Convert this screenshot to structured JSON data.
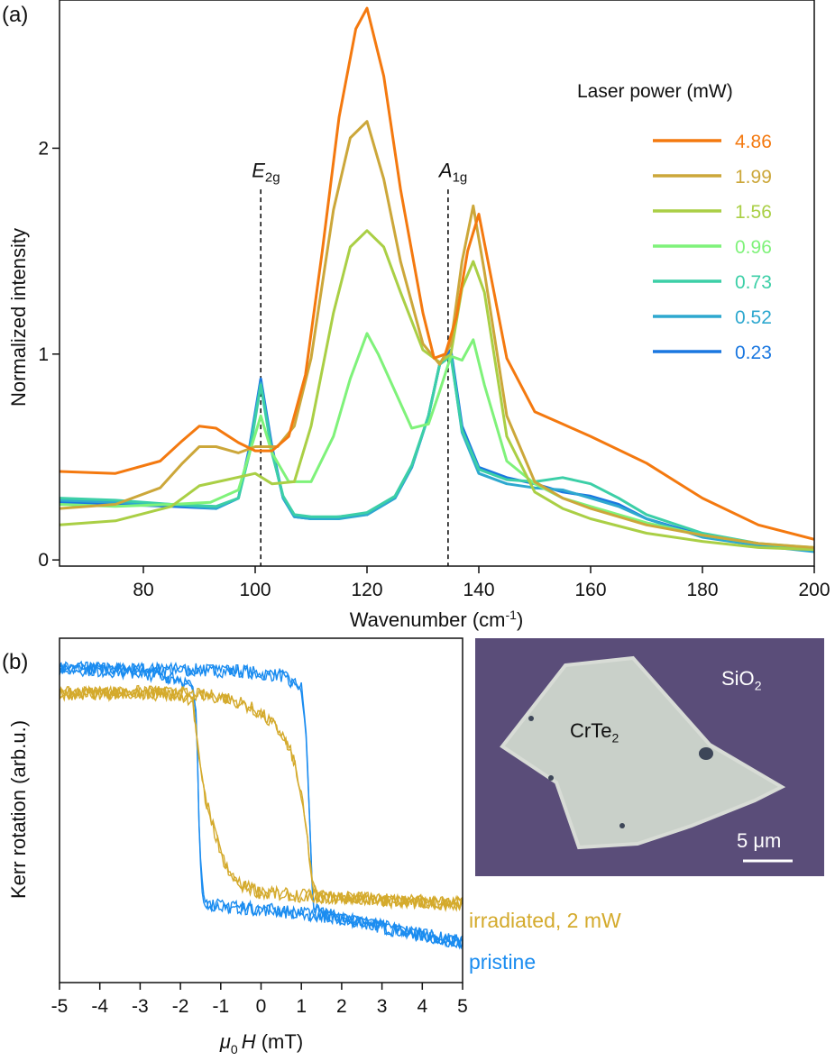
{
  "panel_a": {
    "label": "(a)",
    "legend_title": "Laser power (mW)",
    "peaks": [
      {
        "name": "E",
        "sub": "2g",
        "x": 101
      },
      {
        "name": "A",
        "sub": "1g",
        "x": 134.5
      }
    ]
  },
  "panel_b": {
    "label": "(b)",
    "micro": {
      "material": "CrTe",
      "material_sub": "2",
      "substrate": "SiO",
      "substrate_sub": "2",
      "scale_bar": "5 μm"
    }
  },
  "chart_data": [
    {
      "type": "line",
      "title": "",
      "xlabel": "Wavenumber (cm",
      "xlabel_sup": "-1",
      "xlabel_end": ")",
      "ylabel": "Normalized intensity",
      "xlim": [
        65,
        200
      ],
      "ylim": [
        -0.03,
        2.72
      ],
      "xticks": [
        80,
        100,
        120,
        140,
        160,
        180,
        200
      ],
      "yticks": [
        0,
        1,
        2
      ],
      "legend_position": "top-right",
      "series": [
        {
          "name": "0.23",
          "color": "#1a77e0",
          "x": [
            65,
            75,
            85,
            93,
            97,
            99,
            101,
            103,
            105,
            107,
            110,
            115,
            120,
            125,
            128,
            131,
            133,
            135,
            137,
            140,
            145,
            150,
            155,
            160,
            165,
            170,
            180,
            190,
            200
          ],
          "y": [
            0.28,
            0.27,
            0.26,
            0.25,
            0.3,
            0.55,
            0.88,
            0.55,
            0.3,
            0.21,
            0.2,
            0.21,
            0.22,
            0.3,
            0.45,
            0.7,
            0.95,
            1.02,
            0.65,
            0.45,
            0.4,
            0.37,
            0.33,
            0.31,
            0.27,
            0.2,
            0.12,
            0.07,
            0.05
          ]
        },
        {
          "name": "0.52",
          "color": "#2ea8cf",
          "x": [
            65,
            75,
            85,
            93,
            97,
            99,
            101,
            103,
            105,
            107,
            110,
            115,
            120,
            125,
            128,
            131,
            133,
            135,
            137,
            140,
            145,
            150,
            155,
            160,
            165,
            170,
            180,
            190,
            200
          ],
          "y": [
            0.29,
            0.28,
            0.27,
            0.25,
            0.3,
            0.54,
            0.86,
            0.53,
            0.3,
            0.21,
            0.2,
            0.2,
            0.22,
            0.3,
            0.45,
            0.7,
            0.95,
            1.0,
            0.62,
            0.42,
            0.37,
            0.35,
            0.34,
            0.3,
            0.26,
            0.2,
            0.11,
            0.07,
            0.04
          ]
        },
        {
          "name": "0.73",
          "color": "#3ccfa7",
          "x": [
            65,
            75,
            85,
            93,
            97,
            99,
            101,
            103,
            105,
            107,
            110,
            115,
            120,
            125,
            128,
            131,
            133,
            135,
            137,
            140,
            145,
            150,
            155,
            160,
            165,
            170,
            180,
            190,
            200
          ],
          "y": [
            0.3,
            0.29,
            0.27,
            0.26,
            0.3,
            0.52,
            0.85,
            0.52,
            0.31,
            0.22,
            0.21,
            0.21,
            0.23,
            0.31,
            0.46,
            0.7,
            0.95,
            0.99,
            0.63,
            0.44,
            0.39,
            0.38,
            0.4,
            0.37,
            0.3,
            0.22,
            0.13,
            0.08,
            0.05
          ]
        },
        {
          "name": "0.96",
          "color": "#7ff27a",
          "x": [
            65,
            75,
            85,
            92,
            97,
            99,
            101,
            103,
            106,
            110,
            114,
            117,
            120,
            122,
            125,
            128,
            131,
            133,
            135,
            137,
            139,
            141,
            145,
            150,
            155,
            160,
            170,
            180,
            190,
            200
          ],
          "y": [
            0.27,
            0.26,
            0.27,
            0.28,
            0.34,
            0.52,
            0.7,
            0.52,
            0.38,
            0.38,
            0.6,
            0.88,
            1.1,
            1.0,
            0.82,
            0.64,
            0.66,
            0.82,
            0.99,
            0.97,
            1.07,
            0.85,
            0.48,
            0.37,
            0.3,
            0.26,
            0.18,
            0.12,
            0.08,
            0.06
          ]
        },
        {
          "name": "1.56",
          "color": "#aacf45",
          "x": [
            65,
            75,
            85,
            90,
            95,
            100,
            103,
            107,
            110,
            114,
            117,
            120,
            123,
            126,
            130,
            133,
            135,
            137,
            139,
            141,
            145,
            150,
            155,
            160,
            170,
            180,
            190,
            200
          ],
          "y": [
            0.17,
            0.19,
            0.26,
            0.36,
            0.39,
            0.42,
            0.37,
            0.38,
            0.65,
            1.2,
            1.52,
            1.6,
            1.52,
            1.3,
            1.02,
            0.96,
            1.0,
            1.32,
            1.45,
            1.3,
            0.6,
            0.33,
            0.25,
            0.2,
            0.13,
            0.09,
            0.06,
            0.05
          ]
        },
        {
          "name": "1.99",
          "color": "#cca73a",
          "x": [
            65,
            75,
            83,
            87,
            90,
            93,
            97,
            100,
            104,
            107,
            110,
            114,
            117,
            120,
            123,
            126,
            130,
            133,
            135,
            137,
            139,
            141,
            145,
            150,
            155,
            160,
            170,
            180,
            190,
            200
          ],
          "y": [
            0.25,
            0.27,
            0.35,
            0.47,
            0.55,
            0.55,
            0.52,
            0.55,
            0.55,
            0.65,
            0.98,
            1.7,
            2.05,
            2.13,
            1.85,
            1.45,
            1.05,
            0.95,
            1.05,
            1.45,
            1.72,
            1.4,
            0.7,
            0.38,
            0.3,
            0.25,
            0.17,
            0.12,
            0.08,
            0.06
          ]
        },
        {
          "name": "4.86",
          "color": "#f4790f",
          "x": [
            65,
            75,
            83,
            87,
            90,
            93,
            97,
            100,
            103,
            106,
            109,
            112,
            115,
            118,
            120,
            123,
            126,
            130,
            132,
            134,
            136,
            138,
            140,
            142,
            145,
            150,
            155,
            160,
            170,
            180,
            190,
            200
          ],
          "y": [
            0.43,
            0.42,
            0.48,
            0.58,
            0.65,
            0.64,
            0.57,
            0.53,
            0.53,
            0.6,
            0.9,
            1.5,
            2.15,
            2.58,
            2.68,
            2.35,
            1.8,
            1.2,
            0.98,
            1.0,
            1.18,
            1.5,
            1.68,
            1.4,
            0.98,
            0.72,
            0.66,
            0.6,
            0.47,
            0.3,
            0.17,
            0.1
          ]
        }
      ]
    },
    {
      "type": "line",
      "title": "",
      "xlabel": "μ",
      "xlabel_sub": "0",
      "xlabel_var": "H",
      "xlabel_unit": " (mT)",
      "ylabel": "Kerr rotation (arb.u.)",
      "xlim": [
        -5,
        5
      ],
      "ylim": [
        -1.15,
        1.15
      ],
      "xticks": [
        -5,
        -4,
        -3,
        -2,
        -1,
        0,
        1,
        2,
        3,
        4,
        5
      ],
      "series": [
        {
          "name": "pristine",
          "color": "#1a8cf0",
          "upper_branch": {
            "x": [
              -5,
              -2,
              -0.5,
              0.5,
              1.0,
              1.1,
              1.2,
              1.25,
              1.3,
              1.4,
              2,
              3,
              4,
              5
            ],
            "y": [
              0.95,
              0.94,
              0.93,
              0.9,
              0.82,
              0.6,
              0.0,
              -0.4,
              -0.62,
              -0.68,
              -0.72,
              -0.78,
              -0.84,
              -0.88
            ]
          },
          "lower_branch": {
            "x": [
              -5,
              -3,
              -2,
              -1.7,
              -1.6,
              -1.55,
              -1.5,
              -1.45,
              -1.4,
              -1.3,
              -1.0,
              0,
              2,
              5
            ],
            "y": [
              0.95,
              0.92,
              0.88,
              0.82,
              0.6,
              0.0,
              -0.35,
              -0.55,
              -0.6,
              -0.62,
              -0.64,
              -0.66,
              -0.72,
              -0.88
            ]
          }
        },
        {
          "name": "irradiated, 2 mW",
          "color": "#d4aa2c",
          "upper_branch": {
            "x": [
              -5,
              -3,
              -2,
              -1,
              -0.5,
              0,
              0.5,
              0.8,
              1.0,
              1.2,
              1.3,
              1.4,
              2,
              3,
              4,
              5
            ],
            "y": [
              0.78,
              0.79,
              0.78,
              0.76,
              0.72,
              0.65,
              0.52,
              0.35,
              0.1,
              -0.3,
              -0.52,
              -0.58,
              -0.58,
              -0.6,
              -0.62,
              -0.62
            ]
          },
          "lower_branch": {
            "x": [
              -5,
              -3,
              -2,
              -1.7,
              -1.6,
              -1.5,
              -1.4,
              -1.2,
              -1.0,
              -0.8,
              -0.5,
              0,
              1,
              5
            ],
            "y": [
              0.78,
              0.78,
              0.77,
              0.74,
              0.5,
              0.25,
              0.1,
              -0.1,
              -0.28,
              -0.42,
              -0.5,
              -0.55,
              -0.57,
              -0.62
            ]
          }
        }
      ]
    }
  ]
}
